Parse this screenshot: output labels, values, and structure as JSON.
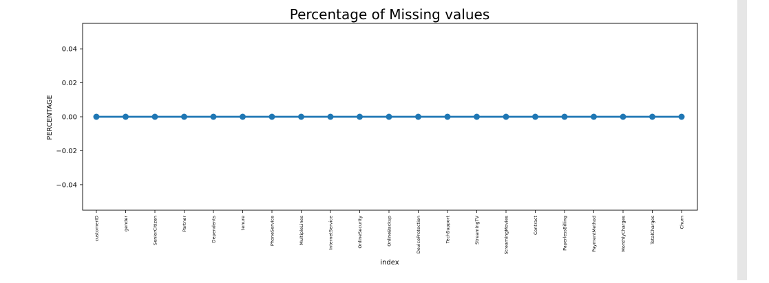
{
  "chart_data": {
    "type": "line",
    "title": "Percentage of Missing values",
    "xlabel": "index",
    "ylabel": "PERCENTAGE",
    "categories": [
      "customerID",
      "gender",
      "SeniorCitizen",
      "Partner",
      "Dependents",
      "tenure",
      "PhoneService",
      "MultipleLines",
      "InternetService",
      "OnlineSecurity",
      "OnlineBackup",
      "DeviceProtection",
      "TechSupport",
      "StreamingTV",
      "StreamingMovies",
      "Contract",
      "PaperlessBilling",
      "PaymentMethod",
      "MonthlyCharges",
      "TotalCharges",
      "Churn"
    ],
    "values": [
      0,
      0,
      0,
      0,
      0,
      0,
      0,
      0,
      0,
      0,
      0,
      0,
      0,
      0,
      0,
      0,
      0,
      0,
      0,
      0,
      0
    ],
    "ylim": [
      -0.055,
      0.055
    ],
    "yticks": [
      -0.04,
      -0.02,
      0.0,
      0.02,
      0.04
    ],
    "ytick_labels": [
      "−0.04",
      "−0.02",
      "0.00",
      "0.02",
      "0.04"
    ],
    "grid": false,
    "line_color": "#1f77b4",
    "marker": "circle",
    "xtick_rotation": "vertical"
  }
}
